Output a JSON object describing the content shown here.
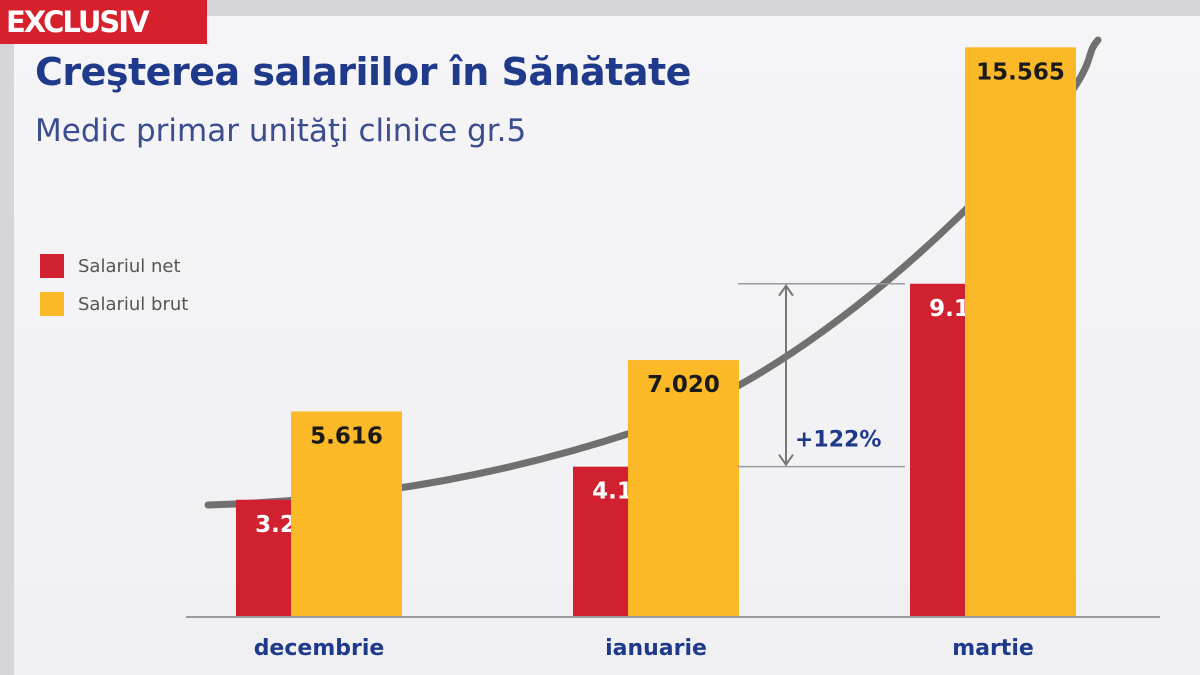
{
  "badge": {
    "label": "EXCLUSIV"
  },
  "title": "Creşterea salariilor în Sănătate",
  "subtitle": "Medic primar unităţi clinice gr.5",
  "colors": {
    "net": "#d1202f",
    "brut": "#fbb827",
    "title": "#1f3a8a",
    "badge": "#d6202c"
  },
  "chart_data": {
    "type": "bar",
    "categories": [
      "decembrie",
      "ianuarie",
      "martie"
    ],
    "series": [
      {
        "name": "Salariul net",
        "values": [
          3203,
          4107,
          9105
        ],
        "labels": [
          "3.203",
          "4.107",
          "9.105"
        ]
      },
      {
        "name": "Salariul brut",
        "values": [
          5616,
          7020,
          15565
        ],
        "labels": [
          "5.616",
          "7.020",
          "15.565"
        ]
      }
    ],
    "annotation": "+122%",
    "ylim": [
      0,
      16000
    ],
    "grid": false,
    "legend_position": "left"
  }
}
